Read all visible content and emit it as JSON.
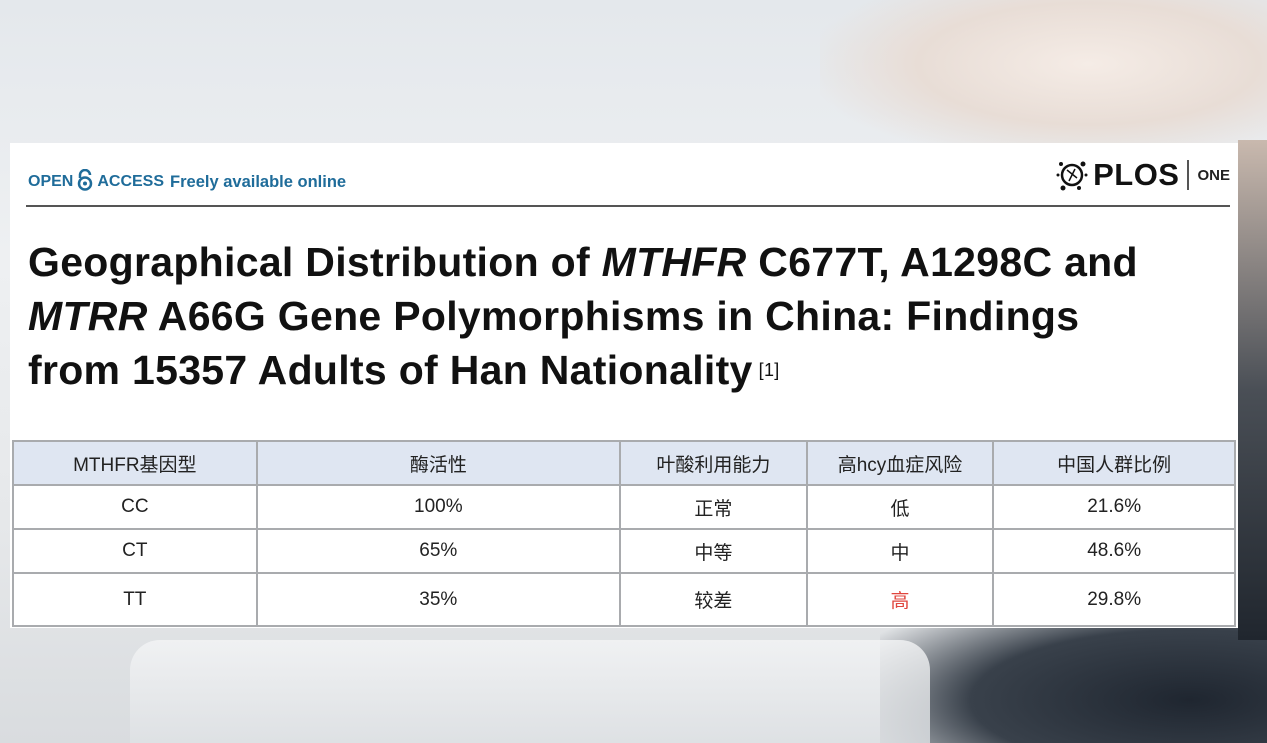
{
  "header": {
    "open_access_left": "OPEN",
    "open_access_right": "ACCESS",
    "tagline": "Freely available online",
    "journal": "PLOS",
    "journal_sub": "ONE"
  },
  "title": {
    "line1_a": "Geographical Distribution of ",
    "line1_italic": "MTHFR",
    "line1_b": " C677T, A1298C and",
    "line2_italic": "MTRR",
    "line2_b": " A66G Gene Polymorphisms in China: Findings",
    "line3": "from 15357 Adults of Han Nationality",
    "citation": "[1]"
  },
  "table": {
    "headers": [
      "MTHFR基因型",
      "酶活性",
      "叶酸利用能力",
      "高hcy血症风险",
      "中国人群比例"
    ],
    "rows": [
      [
        "CC",
        "100%",
        "正常",
        "低",
        "21.6%"
      ],
      [
        "CT",
        "65%",
        "中等",
        "中",
        "48.6%"
      ],
      [
        "TT",
        "35%",
        "较差",
        "高",
        "29.8%"
      ]
    ],
    "highlight_color": "#e0463e"
  },
  "colors": {
    "open_access": "#1f6c9a",
    "table_header_bg": "#dfe6f2"
  }
}
